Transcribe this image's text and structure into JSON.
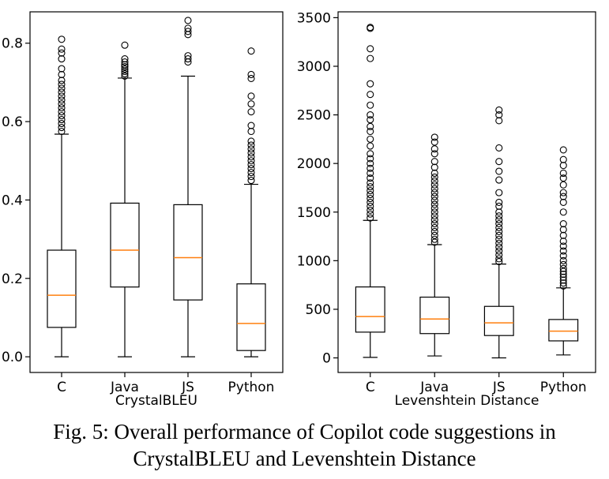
{
  "chart_data": [
    {
      "type": "box",
      "xlabel": "CrystalBLEU",
      "ylabel": "",
      "ylim": [
        -0.04,
        0.88
      ],
      "yticks": [
        0.0,
        0.2,
        0.4,
        0.6,
        0.8
      ],
      "ytick_labels": [
        "0.0",
        "0.2",
        "0.4",
        "0.6",
        "0.8"
      ],
      "categories": [
        "C",
        "Java",
        "JS",
        "Python"
      ],
      "boxes": [
        {
          "min": 0.0,
          "q1": 0.075,
          "median": 0.157,
          "q3": 0.272,
          "max": 0.568,
          "outliers": [
            0.575,
            0.585,
            0.595,
            0.605,
            0.615,
            0.625,
            0.635,
            0.645,
            0.655,
            0.665,
            0.675,
            0.685,
            0.695,
            0.705,
            0.72,
            0.735,
            0.76,
            0.775,
            0.785,
            0.81
          ]
        },
        {
          "min": 0.0,
          "q1": 0.178,
          "median": 0.272,
          "q3": 0.392,
          "max": 0.711,
          "outliers": [
            0.716,
            0.722,
            0.728,
            0.734,
            0.74,
            0.745,
            0.752,
            0.76,
            0.795
          ]
        },
        {
          "min": 0.0,
          "q1": 0.145,
          "median": 0.253,
          "q3": 0.388,
          "max": 0.716,
          "outliers": [
            0.752,
            0.76,
            0.768,
            0.822,
            0.83,
            0.838,
            0.858
          ]
        },
        {
          "min": 0.0,
          "q1": 0.016,
          "median": 0.085,
          "q3": 0.186,
          "max": 0.44,
          "outliers": [
            0.45,
            0.46,
            0.47,
            0.48,
            0.49,
            0.5,
            0.51,
            0.52,
            0.53,
            0.54,
            0.55,
            0.575,
            0.59,
            0.625,
            0.645,
            0.665,
            0.71,
            0.72,
            0.78
          ]
        }
      ]
    },
    {
      "type": "box",
      "xlabel": "Levenshtein Distance",
      "ylabel": "",
      "ylim": [
        -150,
        3560
      ],
      "yticks": [
        0,
        500,
        1000,
        1500,
        2000,
        2500,
        3000,
        3500
      ],
      "ytick_labels": [
        "0",
        "500",
        "1000",
        "1500",
        "2000",
        "2500",
        "3000",
        "3500"
      ],
      "categories": [
        "C",
        "Java",
        "JS",
        "Python"
      ],
      "boxes": [
        {
          "min": 5,
          "q1": 265,
          "median": 425,
          "q3": 730,
          "max": 1415,
          "outliers": [
            1440,
            1480,
            1520,
            1560,
            1600,
            1640,
            1680,
            1720,
            1760,
            1800,
            1850,
            1900,
            1950,
            2000,
            2050,
            2100,
            2180,
            2250,
            2330,
            2380,
            2450,
            2500,
            2600,
            2710,
            2820,
            3080,
            3180,
            3390,
            3400
          ]
        },
        {
          "min": 20,
          "q1": 250,
          "median": 400,
          "q3": 625,
          "max": 1165,
          "outliers": [
            1190,
            1220,
            1260,
            1300,
            1340,
            1380,
            1420,
            1460,
            1500,
            1540,
            1580,
            1620,
            1660,
            1700,
            1740,
            1780,
            1820,
            1860,
            1900,
            1960,
            2020,
            2100,
            2150,
            2220,
            2270
          ]
        },
        {
          "min": 0,
          "q1": 230,
          "median": 360,
          "q3": 530,
          "max": 965,
          "outliers": [
            990,
            1020,
            1060,
            1100,
            1140,
            1180,
            1220,
            1260,
            1300,
            1340,
            1380,
            1420,
            1460,
            1500,
            1560,
            1600,
            1700,
            1830,
            1920,
            2020,
            2160,
            2440,
            2500,
            2550
          ]
        },
        {
          "min": 30,
          "q1": 175,
          "median": 275,
          "q3": 395,
          "max": 720,
          "outliers": [
            740,
            770,
            800,
            830,
            860,
            890,
            920,
            960,
            1000,
            1050,
            1100,
            1150,
            1200,
            1260,
            1320,
            1380,
            1500,
            1600,
            1660,
            1700,
            1780,
            1850,
            1900,
            1980,
            2040,
            2140
          ]
        }
      ]
    }
  ],
  "caption": {
    "line1": "Fig. 5: Overall performance of Copilot code suggestions in",
    "line2": "CrystalBLEU and Levenshtein Distance"
  },
  "colors": {
    "median": "#ff7f0e",
    "frame": "#000000"
  }
}
